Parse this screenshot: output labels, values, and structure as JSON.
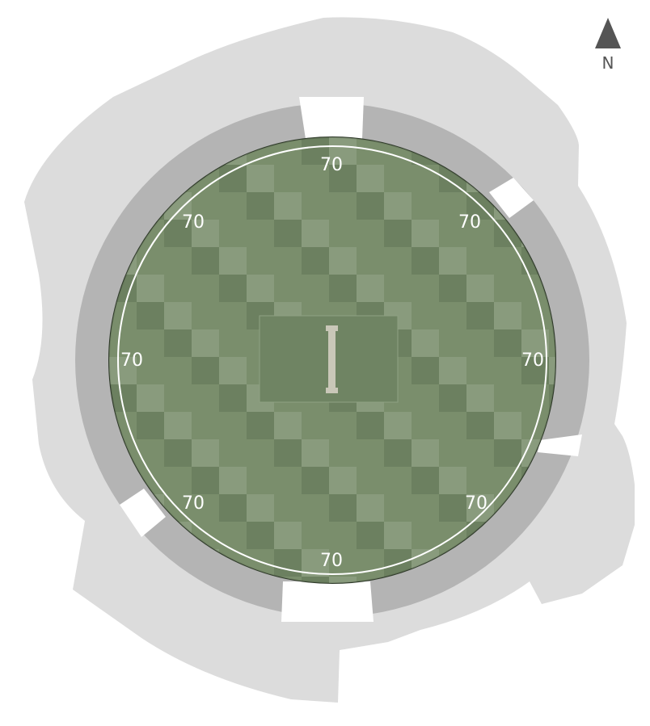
{
  "map": {
    "north_label": "N",
    "distance_markers": [
      {
        "direction": "N",
        "label": "70"
      },
      {
        "direction": "NE",
        "label": "70"
      },
      {
        "direction": "E",
        "label": "70"
      },
      {
        "direction": "SE",
        "label": "70"
      },
      {
        "direction": "S",
        "label": "70"
      },
      {
        "direction": "SW",
        "label": "70"
      },
      {
        "direction": "W",
        "label": "70"
      },
      {
        "direction": "NW",
        "label": "70"
      }
    ],
    "colors": {
      "ground_outer": "#dcdcdc",
      "stand_ring": "#b4b4b4",
      "gap": "#ffffff",
      "field": "#7a8e6c",
      "field_light": "#8c9e80",
      "field_dark": "#6a7e5e",
      "square": "#6f8463",
      "pitch": "#c9c7b8",
      "boundary_line": "#ffffff",
      "north_arrow": "#555555"
    }
  }
}
